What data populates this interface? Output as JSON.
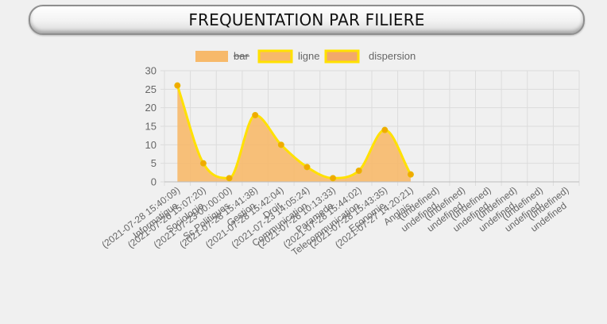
{
  "header": {
    "title": "FREQUENTATION PAR FILIERE"
  },
  "colors": {
    "fill": "#f7b96a",
    "line": "#ffe100",
    "point": "#f2a900",
    "point_stroke": "#e8b800",
    "grid": "#dcdcdc",
    "text": "#666666"
  },
  "chart_data": {
    "type": "line",
    "legend": [
      {
        "label": "bar",
        "hidden": true,
        "swatch_fill": "#f7b96a",
        "swatch_stroke": "#f7b96a"
      },
      {
        "label": "ligne",
        "hidden": false,
        "swatch_fill": "#f7b96a",
        "swatch_stroke": "#ffe100"
      },
      {
        "label": "dispersion",
        "hidden": false,
        "swatch_fill": "#f2a96a",
        "swatch_stroke": "#ffe100"
      }
    ],
    "legend_position": "top",
    "ylim": [
      0,
      30
    ],
    "yticks": [
      "0",
      "5",
      "10",
      "15",
      "20",
      "25",
      "30"
    ],
    "grid": true,
    "categories": [
      {
        "name": "Informatique",
        "date": "(2021-07-28 15:40:09)"
      },
      {
        "name": "Sociologie",
        "date": "(2021-07-26 15:07:20)"
      },
      {
        "name": "Sc.Politiques",
        "date": "(2021-07-23 00:00:00)"
      },
      {
        "name": "Gestion",
        "date": "(2021-07-28 15:41:38)"
      },
      {
        "name": "Droit",
        "date": "(2021-07-28 15:42:04)"
      },
      {
        "name": "Communication",
        "date": "(2021-07-23 14:05:24)"
      },
      {
        "name": "Paramede",
        "date": "(2021-07-26 10:13:33)"
      },
      {
        "name": "Telecommunication",
        "date": "(2021-07-28 15:44:02)"
      },
      {
        "name": "Economie",
        "date": "(2021-07-28 15:43:35)"
      },
      {
        "name": "Anglais",
        "date": "(2021-07-27 14:20:21)"
      },
      {
        "name": "undefined",
        "date": "(undefined)"
      },
      {
        "name": "undefined",
        "date": "(undefined)"
      },
      {
        "name": "undefined",
        "date": "(undefined)"
      },
      {
        "name": "undefined",
        "date": "(undefined)"
      },
      {
        "name": "undefined",
        "date": "(undefined)"
      },
      {
        "name": "undefined",
        "date": "(undefined)"
      }
    ],
    "series": [
      {
        "name": "ligne",
        "values": [
          26,
          5,
          1,
          18,
          10,
          4,
          1,
          3,
          14,
          2,
          null,
          null,
          null,
          null,
          null,
          null
        ]
      }
    ]
  }
}
